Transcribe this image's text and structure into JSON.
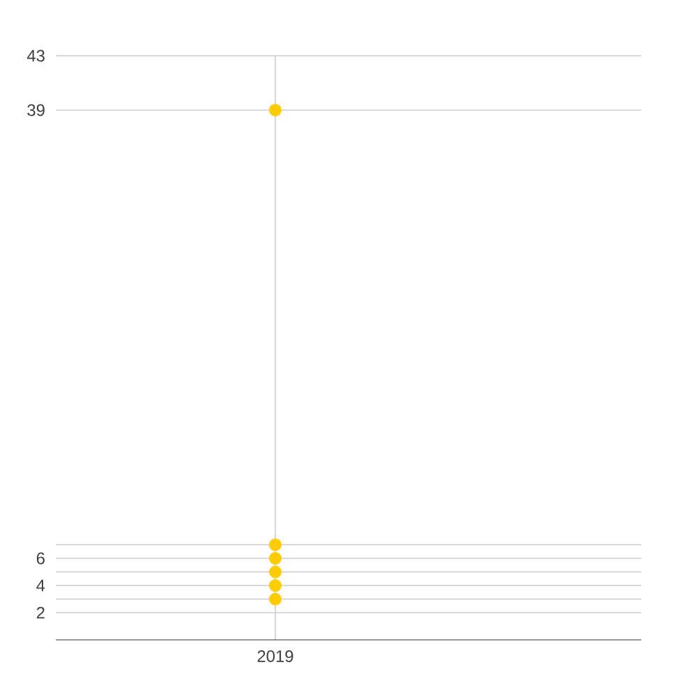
{
  "chart_data": {
    "type": "scatter",
    "categories": [
      "2019"
    ],
    "series": [
      {
        "color": "#ffcc00",
        "values": [
          3
        ]
      },
      {
        "color": "#ffcc00",
        "values": [
          4
        ]
      },
      {
        "color": "#ffcc00",
        "values": [
          5
        ]
      },
      {
        "color": "#ffcc00",
        "values": [
          6
        ]
      },
      {
        "color": "#ffcc00",
        "values": [
          7
        ]
      },
      {
        "color": "#ffcc00",
        "values": [
          39
        ]
      }
    ],
    "ylim": [
      0,
      43
    ],
    "yticks": [
      2,
      {
        "value": 3,
        "label": null
      },
      4,
      {
        "value": 5,
        "label": null
      },
      6,
      {
        "value": 7,
        "label": null
      },
      39,
      43
    ],
    "grid": true
  }
}
